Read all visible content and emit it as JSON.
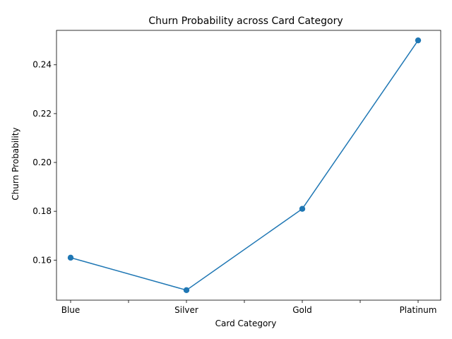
{
  "chart_data": {
    "type": "line",
    "title": "Churn Probability across Card Category",
    "xlabel": "Card Category",
    "ylabel": "Churn Probability",
    "categories": [
      "Blue",
      "Silver",
      "Gold",
      "Platinum"
    ],
    "series": [
      {
        "values": [
          0.161,
          0.1477,
          0.181,
          0.25
        ]
      }
    ],
    "yticks": [
      "0.16",
      "0.18",
      "0.20",
      "0.22",
      "0.24"
    ],
    "ylim": [
      0.1436,
      0.2541
    ],
    "grid": false,
    "legend": "none",
    "markers": true,
    "color": "#1f77b4"
  }
}
